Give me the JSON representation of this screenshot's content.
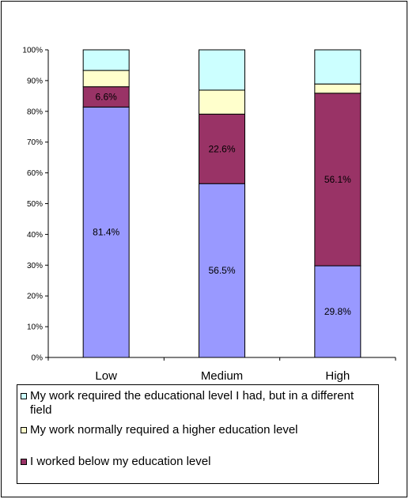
{
  "chart_data": {
    "type": "bar",
    "stacked": true,
    "categories": [
      "Low",
      "Medium",
      "High"
    ],
    "y_ticks": [
      "0%",
      "10%",
      "20%",
      "30%",
      "40%",
      "50%",
      "60%",
      "70%",
      "80%",
      "90%",
      "100%"
    ],
    "ylim": [
      0,
      100
    ],
    "grid": false,
    "legend_position": "bottom",
    "series": [
      {
        "values": [
          81.4,
          56.5,
          29.8
        ],
        "labels": [
          "81.4%",
          "56.5%",
          "29.8%"
        ],
        "color": "#9999ff"
      },
      {
        "name": "I worked below my education level",
        "values": [
          6.6,
          22.6,
          56.1
        ],
        "labels": [
          "6.6%",
          "22.6%",
          "56.1%"
        ],
        "color": "#993366"
      },
      {
        "name": "My work normally required a higher education level",
        "values": [
          5.3,
          7.8,
          3.0
        ],
        "labels": [
          "",
          "",
          ""
        ],
        "color": "#ffffcc"
      },
      {
        "name": "My work required the educational level I had, but in a different field",
        "values": [
          6.7,
          13.1,
          11.1
        ],
        "labels": [
          "",
          "",
          ""
        ],
        "color": "#ccffff"
      }
    ]
  },
  "legend": {
    "items": [
      {
        "label": "My work required the educational level I had, but in a different field",
        "color": "#ccffff"
      },
      {
        "label": "My work normally required a higher education level",
        "color": "#ffffcc"
      },
      {
        "label": "I worked below my education level",
        "color": "#993366"
      }
    ]
  }
}
